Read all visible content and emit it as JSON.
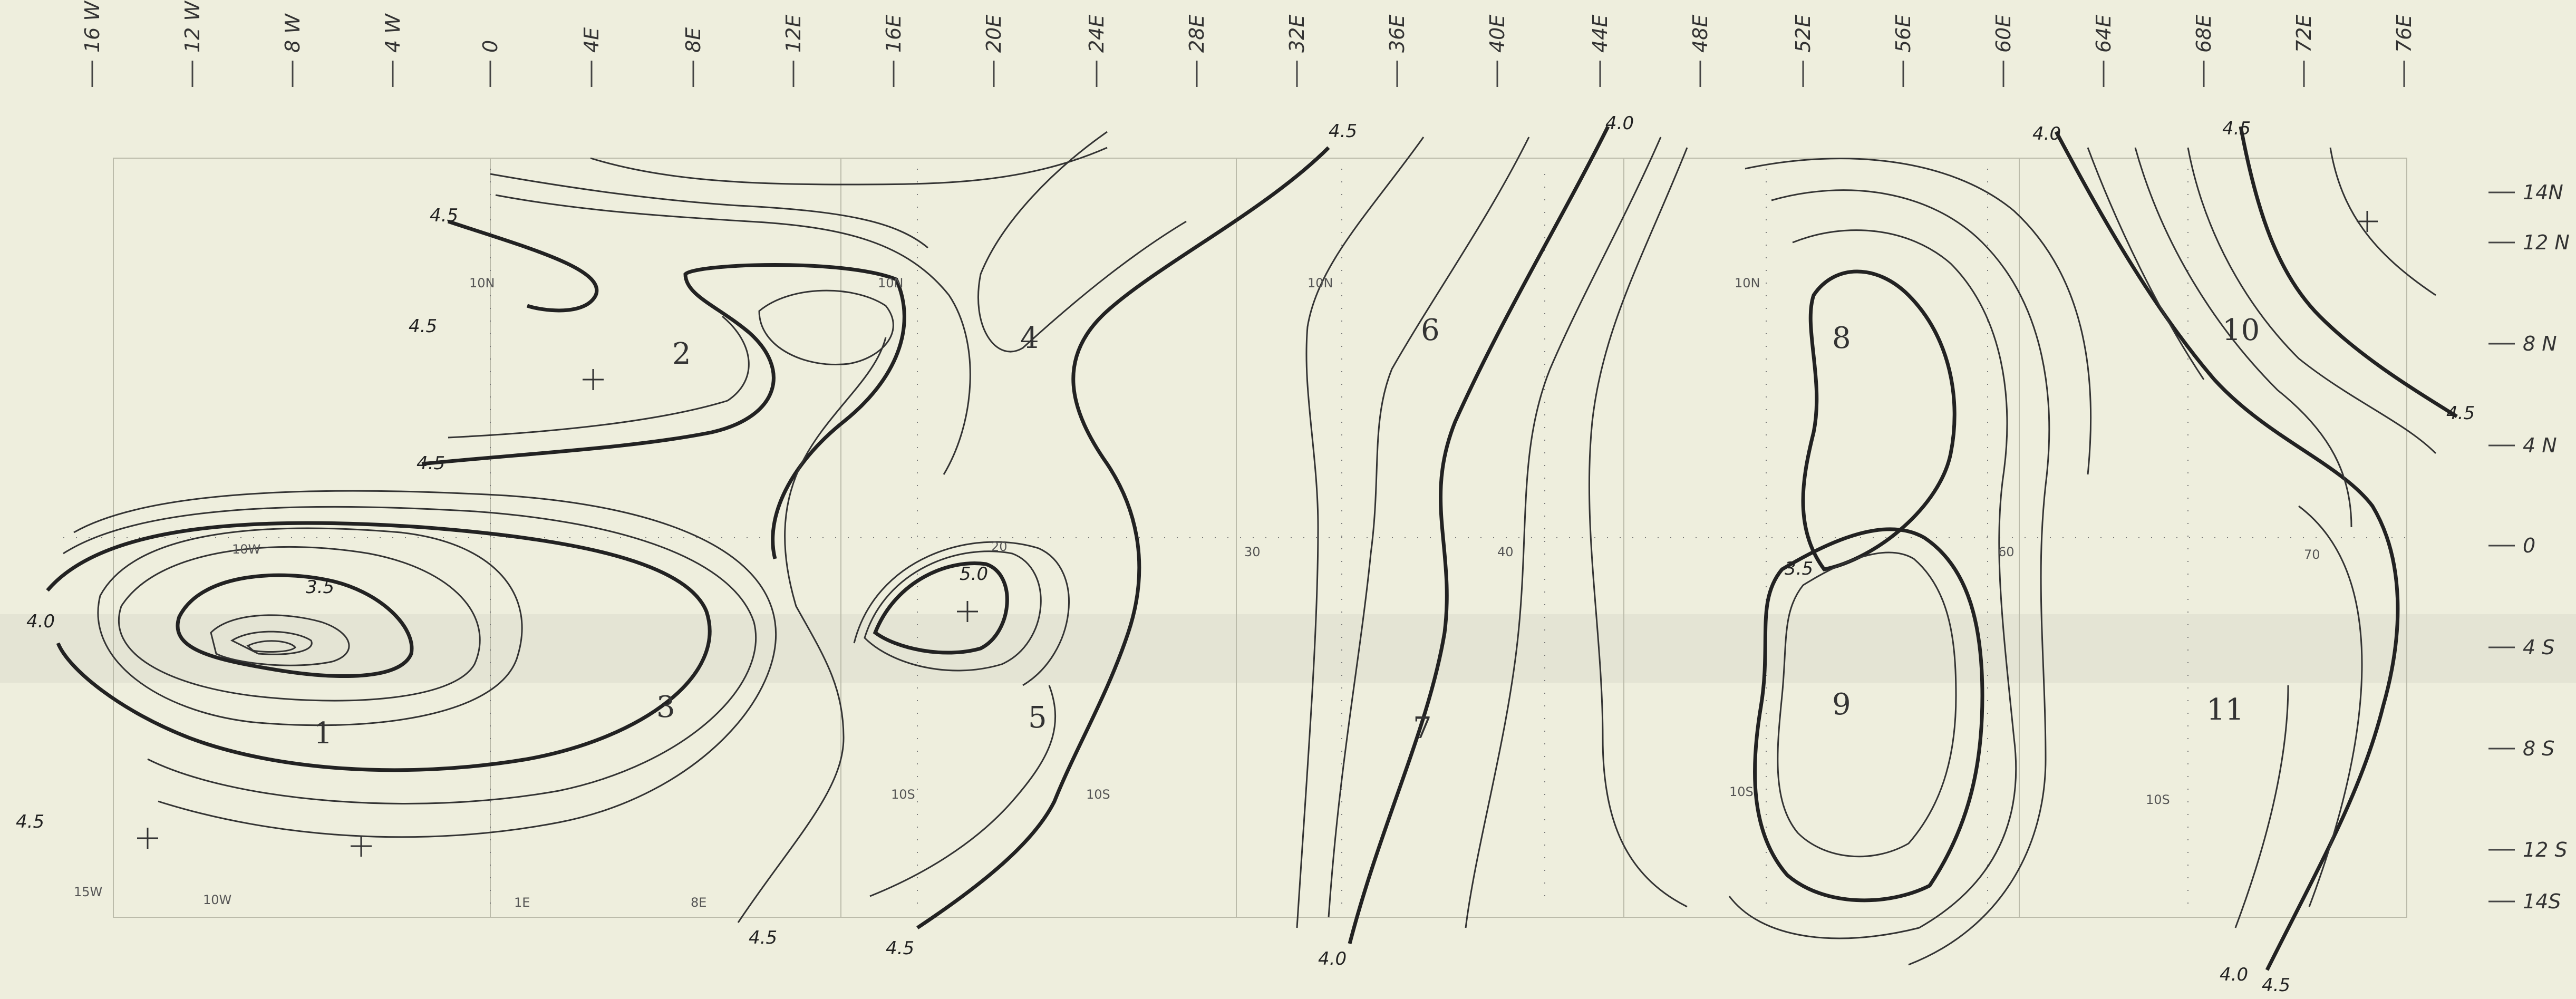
{
  "longitude_labels": [
    "16 W",
    "12 W",
    "8 W",
    "4 W",
    "0",
    "4E",
    "8E",
    "12E",
    "16E",
    "20E",
    "24E",
    "28E",
    "32E",
    "36E",
    "40E",
    "44E",
    "48E",
    "52E",
    "56E",
    "60E",
    "64E",
    "68E",
    "72E",
    "76E"
  ],
  "latitude_labels": [
    "14N",
    "12 N",
    "8 N",
    "4 N",
    "0",
    "4 S",
    "8 S",
    "12 S",
    "14S"
  ],
  "region_labels": [
    "1",
    "2",
    "3",
    "4",
    "5",
    "6",
    "7",
    "8",
    "9",
    "10",
    "11"
  ],
  "contour_labels": [
    "4.5",
    "4.5",
    "4.5",
    "4.0",
    "4.5",
    "3.5",
    "5.0",
    "4.5",
    "4.5",
    "4.5",
    "4.0",
    "4.0",
    "4.0",
    "4.5",
    "4.5",
    "3.5",
    "4.0",
    "4.5"
  ],
  "grid_labels": [
    "10W",
    "1E",
    "8E",
    "20",
    "30",
    "40",
    "60",
    "70",
    "10N",
    "10N",
    "10N",
    "10N",
    "10S",
    "10S",
    "10S",
    "10S",
    "15W",
    "10W"
  ]
}
